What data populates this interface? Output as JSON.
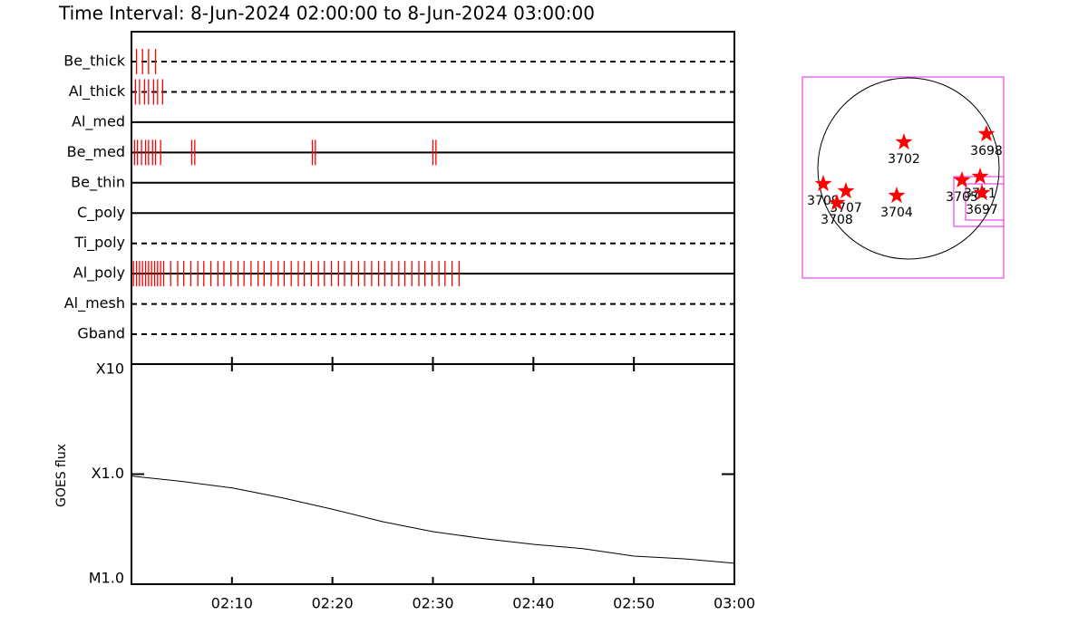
{
  "chart_data": [
    {
      "type": "event",
      "title": "Time Interval:  8-Jun-2024 02:00:00 to  8-Jun-2024 03:00:00",
      "color": "#ff0000",
      "xlim": [
        0,
        60
      ],
      "xticks": [
        {
          "value": 10,
          "label": "02:10"
        },
        {
          "value": 20,
          "label": "02:20"
        },
        {
          "value": 30,
          "label": "02:30"
        },
        {
          "value": 40,
          "label": "02:40"
        },
        {
          "value": 50,
          "label": "02:50"
        },
        {
          "value": 60,
          "label": "03:00"
        }
      ],
      "rows": [
        {
          "name": "Be_thick",
          "style": "dashed",
          "values": [
            0.5,
            1.1,
            1.7,
            2.4
          ]
        },
        {
          "name": "Al_thick",
          "style": "dashed",
          "values": [
            0.4,
            0.8,
            1.3,
            1.7,
            2.2,
            2.6,
            3.1
          ]
        },
        {
          "name": "Al_med",
          "style": "solid",
          "values": []
        },
        {
          "name": "Be_med",
          "style": "solid",
          "values": [
            0.3,
            0.6,
            1.0,
            1.4,
            1.7,
            2.1,
            2.4,
            2.9,
            6.0,
            6.3,
            18.0,
            18.3,
            30.0,
            30.3
          ]
        },
        {
          "name": "Be_thin",
          "style": "solid",
          "values": []
        },
        {
          "name": "C_poly",
          "style": "solid",
          "values": []
        },
        {
          "name": "Ti_poly",
          "style": "dashed",
          "values": []
        },
        {
          "name": "Al_poly",
          "style": "solid",
          "values": [
            0.2,
            0.5,
            0.8,
            1.1,
            1.4,
            1.7,
            2.0,
            2.3,
            2.6,
            2.9,
            3.2,
            3.9,
            4.6,
            5.2,
            5.9,
            6.6,
            7.2,
            7.9,
            8.6,
            9.2,
            9.9,
            10.6,
            11.2,
            11.9,
            12.6,
            13.2,
            13.9,
            14.6,
            15.2,
            15.9,
            16.6,
            17.2,
            17.9,
            18.6,
            19.2,
            19.9,
            20.6,
            21.2,
            21.9,
            22.6,
            23.2,
            23.9,
            24.6,
            25.2,
            25.9,
            26.6,
            27.2,
            27.9,
            28.6,
            29.2,
            29.9,
            30.6,
            31.2,
            31.9,
            32.6
          ]
        },
        {
          "name": "Al_mesh",
          "style": "dashed",
          "values": []
        },
        {
          "name": "Gband",
          "style": "dashed",
          "values": []
        }
      ]
    },
    {
      "type": "line",
      "ylabel": "GOES flux",
      "log_scale": true,
      "color": "#000000",
      "xlim": [
        0,
        60
      ],
      "xticks": [
        {
          "value": 10,
          "label": "02:10"
        },
        {
          "value": 20,
          "label": "02:20"
        },
        {
          "value": 30,
          "label": "02:30"
        },
        {
          "value": 40,
          "label": "02:40"
        },
        {
          "value": 50,
          "label": "02:50"
        },
        {
          "value": 60,
          "label": "03:00"
        }
      ],
      "ylim": [
        1e-05,
        0.001
      ],
      "yticks": [
        {
          "value": 1e-05,
          "label": "M1.0"
        },
        {
          "value": 0.0001,
          "label": "X1.0"
        },
        {
          "value": 0.001,
          "label": "X10"
        }
      ],
      "x": [
        0,
        5,
        10,
        15,
        20,
        25,
        30,
        35,
        40,
        45,
        50,
        55,
        60
      ],
      "values": [
        9.6e-05,
        8.6e-05,
        7.5e-05,
        6.1e-05,
        4.8e-05,
        3.7e-05,
        3e-05,
        2.6e-05,
        2.3e-05,
        2.1e-05,
        1.8e-05,
        1.7e-05,
        1.55e-05
      ]
    },
    {
      "type": "scatter",
      "color": "#ff0000",
      "xlim": [
        -1.17,
        1.05
      ],
      "ylim": [
        -1.21,
        1.01
      ],
      "x": [
        -0.05,
        0.86,
        -0.94,
        -0.69,
        -0.79,
        -0.13,
        0.59,
        0.79,
        0.81
      ],
      "values": [
        0.29,
        0.38,
        -0.17,
        -0.25,
        -0.38,
        -0.3,
        -0.13,
        -0.09,
        -0.27
      ],
      "labels": [
        "3702",
        "3698",
        "3709",
        "3707",
        "3708",
        "3704",
        "3705",
        "3711",
        "3697"
      ]
    }
  ]
}
